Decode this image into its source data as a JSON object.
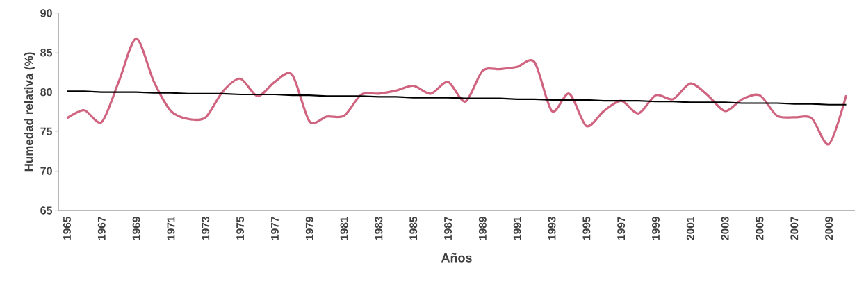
{
  "chart_data": {
    "type": "line",
    "xlabel": "Años",
    "ylabel": "Humedad relativa (%)",
    "categories": [
      "1965",
      null,
      "1967",
      null,
      "1969",
      null,
      "1971",
      null,
      "1973",
      null,
      "1975",
      null,
      "1977",
      null,
      "1979",
      null,
      "1981",
      null,
      "1983",
      null,
      "1985",
      null,
      "1987",
      null,
      "1989",
      null,
      "1991",
      null,
      "1993",
      null,
      "1995",
      null,
      "1997",
      null,
      "1999",
      null,
      "2001",
      null,
      "2003",
      null,
      "2005",
      null,
      "2007",
      null,
      "2009",
      null
    ],
    "series": [
      {
        "color": "#d0637f",
        "values": [
          76.7,
          77.7,
          76.2,
          81.4,
          86.8,
          81.4,
          77.6,
          76.6,
          76.8,
          80.1,
          81.7,
          79.5,
          81.3,
          82.2,
          76.3,
          76.9,
          77.0,
          79.7,
          79.8,
          80.2,
          80.8,
          79.8,
          81.3,
          78.8,
          82.7,
          82.9,
          83.2,
          83.8,
          77.6,
          79.8,
          75.7,
          77.6,
          78.9,
          77.3,
          79.6,
          79.1,
          81.1,
          79.6,
          77.6,
          79.1,
          79.6,
          77.0,
          76.8,
          76.7,
          73.4,
          79.6
        ]
      },
      {
        "type": "line",
        "color": "#000000",
        "values": [
          80.1,
          80.1,
          80.0,
          80.0,
          80.0,
          79.9,
          79.9,
          79.8,
          79.8,
          79.8,
          79.7,
          79.7,
          79.7,
          79.6,
          79.6,
          79.5,
          79.5,
          79.5,
          79.4,
          79.4,
          79.3,
          79.3,
          79.3,
          79.2,
          79.2,
          79.2,
          79.1,
          79.1,
          79.0,
          79.0,
          79.0,
          78.9,
          78.9,
          78.9,
          78.8,
          78.8,
          78.7,
          78.7,
          78.7,
          78.6,
          78.6,
          78.6,
          78.5,
          78.5,
          78.4,
          78.4
        ]
      }
    ],
    "ylim": [
      65,
      90
    ],
    "yticks": [
      65,
      70,
      75,
      80,
      85,
      90
    ],
    "grid": false,
    "marker": "none",
    "line_style": "solid"
  }
}
